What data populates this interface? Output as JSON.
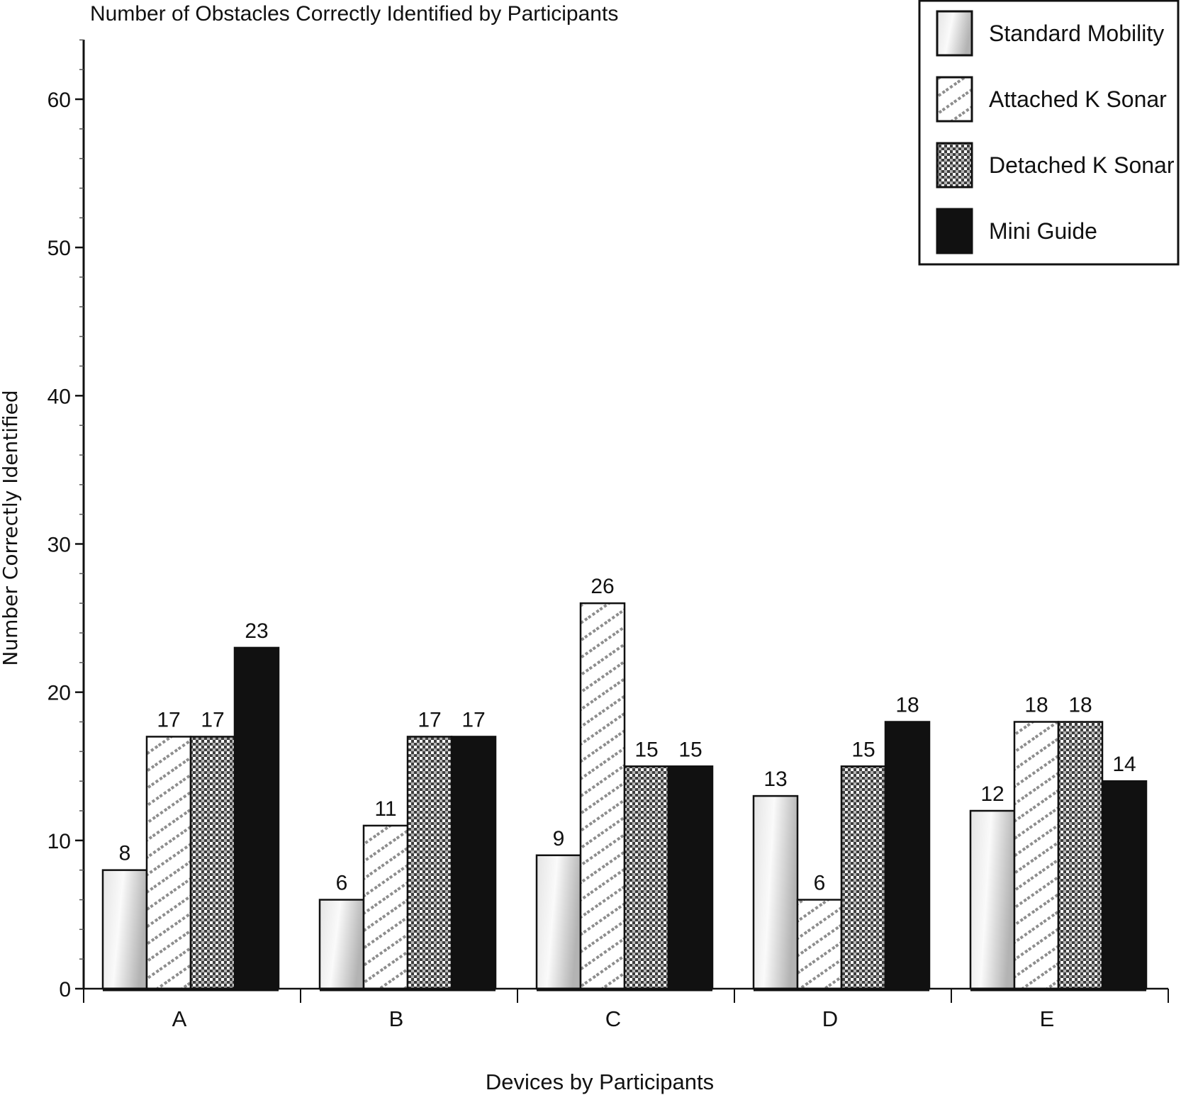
{
  "chart_data": {
    "type": "bar",
    "title": "Number of Obstacles Correctly Identified by Participants",
    "xlabel": "Devices by Participants",
    "ylabel": "Number Correctly Identified",
    "ylim": [
      0,
      64
    ],
    "yticks": [
      0,
      10,
      20,
      30,
      40,
      50,
      60
    ],
    "yticks_minor_step": 2,
    "grid": false,
    "legend_position": "top-right",
    "categories": [
      "A",
      "B",
      "C",
      "D",
      "E"
    ],
    "series": [
      {
        "name": "Standard Mobility",
        "pattern": "gradient",
        "values": [
          8,
          6,
          9,
          13,
          12
        ]
      },
      {
        "name": "Attached K Sonar",
        "pattern": "diagonal-dots",
        "values": [
          17,
          11,
          26,
          6,
          18
        ]
      },
      {
        "name": "Detached K Sonar",
        "pattern": "checker",
        "values": [
          17,
          17,
          15,
          15,
          18
        ]
      },
      {
        "name": "Mini Guide",
        "pattern": "solid",
        "values": [
          23,
          17,
          15,
          18,
          14
        ]
      }
    ],
    "colors": {
      "solid": "#111111",
      "pattern_gray": "#8a8a8a",
      "checker_dark": "#3a3a3a",
      "gradient_light": "#ffffff",
      "gradient_dark": "#b8b8b8"
    }
  }
}
